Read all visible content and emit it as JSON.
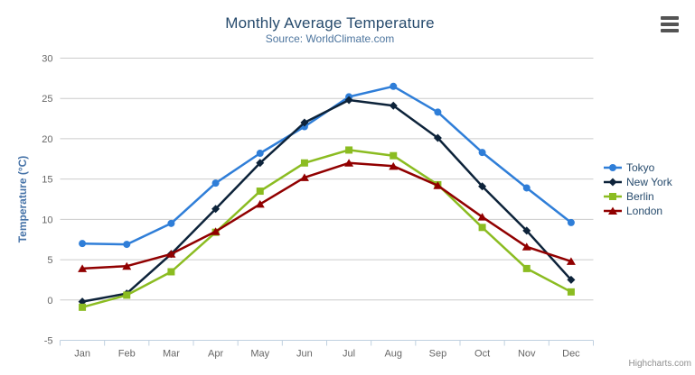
{
  "chart_data": {
    "type": "line",
    "title": "Monthly Average Temperature",
    "subtitle": "Source: WorldClimate.com",
    "xlabel": "",
    "ylabel": "Temperature (°C)",
    "categories": [
      "Jan",
      "Feb",
      "Mar",
      "Apr",
      "May",
      "Jun",
      "Jul",
      "Aug",
      "Sep",
      "Oct",
      "Nov",
      "Dec"
    ],
    "series": [
      {
        "name": "Tokyo",
        "color": "#2f7ed8",
        "marker": "circle",
        "values": [
          7.0,
          6.9,
          9.5,
          14.5,
          18.2,
          21.5,
          25.2,
          26.5,
          23.3,
          18.3,
          13.9,
          9.6
        ]
      },
      {
        "name": "New York",
        "color": "#0d233a",
        "marker": "diamond",
        "values": [
          -0.2,
          0.8,
          5.7,
          11.3,
          17.0,
          22.0,
          24.8,
          24.1,
          20.1,
          14.1,
          8.6,
          2.5
        ]
      },
      {
        "name": "Berlin",
        "color": "#8bbc21",
        "marker": "square",
        "values": [
          -0.9,
          0.6,
          3.5,
          8.4,
          13.5,
          17.0,
          18.6,
          17.9,
          14.3,
          9.0,
          3.9,
          1.0
        ]
      },
      {
        "name": "London",
        "color": "#910000",
        "marker": "triangle",
        "values": [
          3.9,
          4.2,
          5.7,
          8.5,
          11.9,
          15.2,
          17.0,
          16.6,
          14.2,
          10.3,
          6.6,
          4.8
        ]
      }
    ],
    "ylim": [
      -5,
      30
    ],
    "ytick_interval": 5,
    "ytick_labels": [
      "-5",
      "0",
      "5",
      "10",
      "15",
      "20",
      "25",
      "30"
    ],
    "grid": true,
    "legend_position": "right"
  },
  "colors": {
    "title": "#274b6d",
    "subtitle": "#4d759e",
    "axis_label": "#666666",
    "y_axis_title": "#4572a7",
    "gridline": "#cccccc",
    "axis_line": "#c0d0e0",
    "legend_text": "#274b6d",
    "credits": "#909090"
  },
  "credits": "Highcharts.com",
  "export_menu": {
    "icon": "hamburger-icon"
  }
}
